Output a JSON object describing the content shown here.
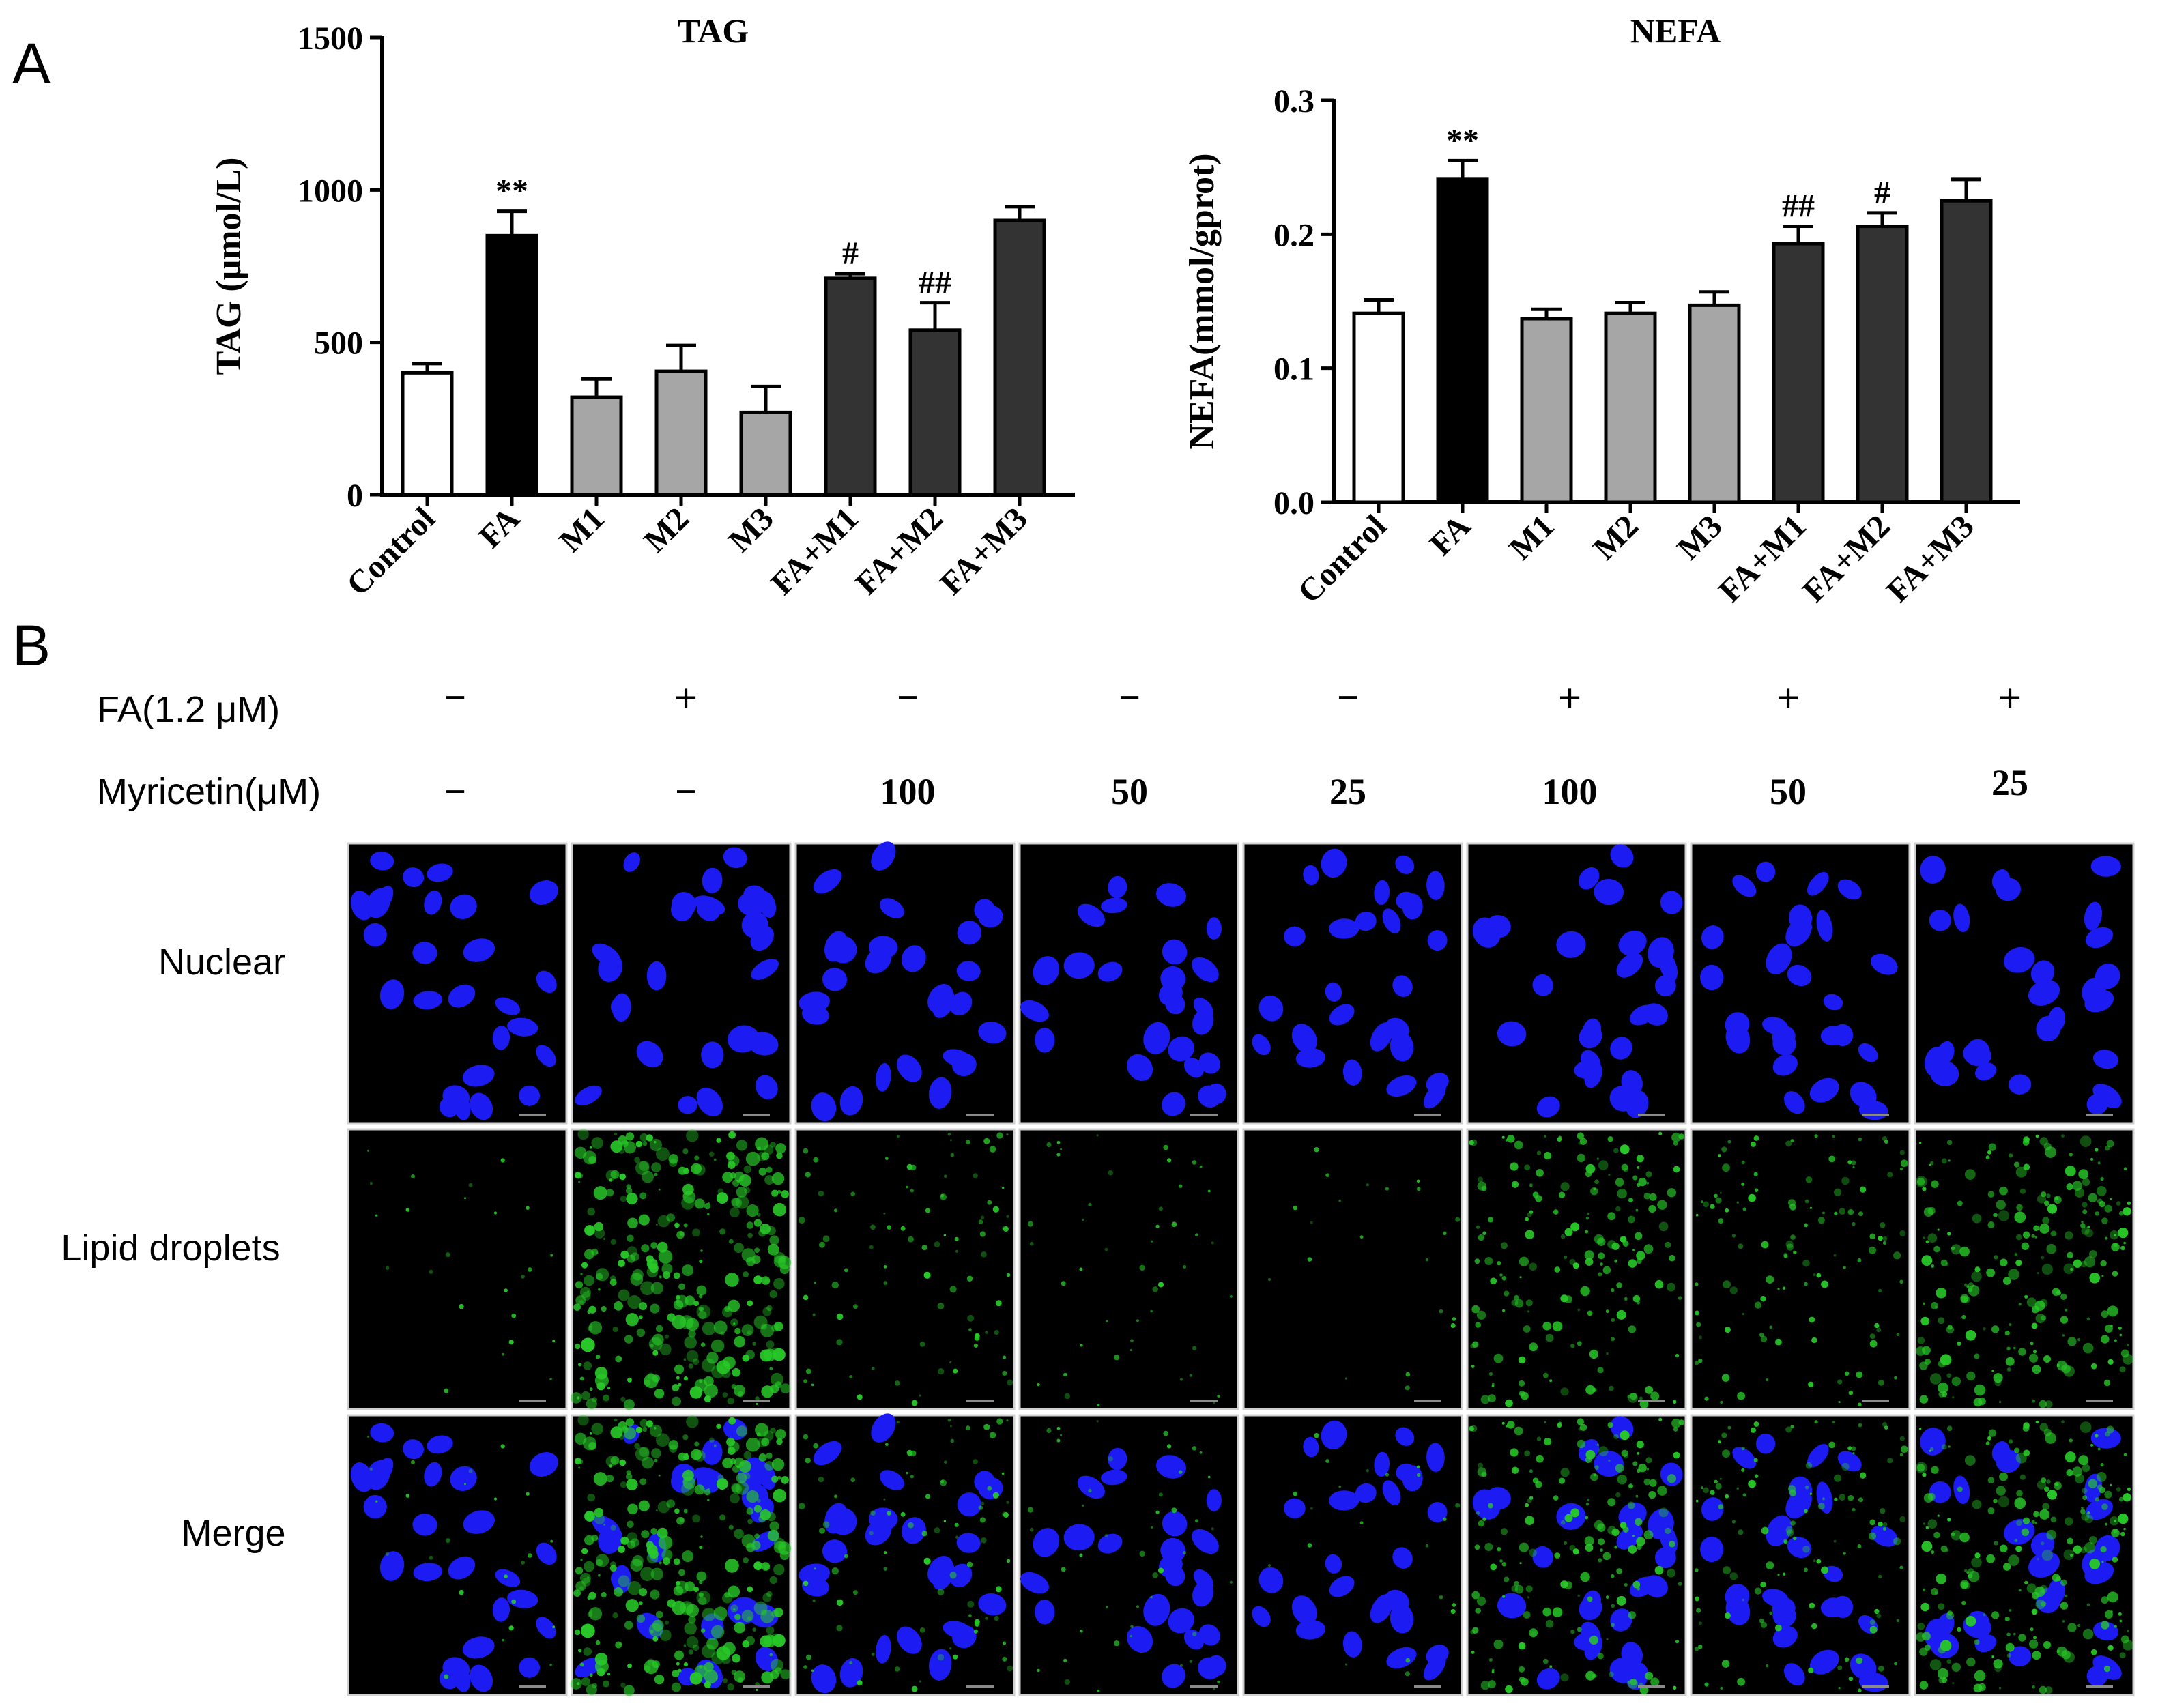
{
  "panel_labels": {
    "a": "A",
    "b": "B"
  },
  "chart_data": [
    {
      "type": "bar",
      "title": "TAG",
      "ylabel": "TAG (μmol/L)",
      "xlabel": "",
      "categories": [
        "Control",
        "FA",
        "M1",
        "M2",
        "M3",
        "FA+M1",
        "FA+M2",
        "FA+M3"
      ],
      "values": [
        400,
        850,
        320,
        405,
        270,
        710,
        540,
        900
      ],
      "errors": [
        30,
        80,
        60,
        85,
        85,
        15,
        90,
        45
      ],
      "annotations": [
        "",
        "**",
        "",
        "",
        "",
        "#",
        "##",
        ""
      ],
      "fills": [
        "#ffffff",
        "#000000",
        "#a6a6a6",
        "#a6a6a6",
        "#a6a6a6",
        "#333333",
        "#333333",
        "#333333"
      ],
      "ylim": [
        0,
        1500
      ],
      "yticks": [
        "0",
        "500",
        "1000",
        "1500"
      ],
      "ytick_values": [
        0,
        500,
        1000,
        1500
      ],
      "grid": false
    },
    {
      "type": "bar",
      "title": "NEFA",
      "ylabel": "NEFA(mmol/gprot)",
      "xlabel": "",
      "categories": [
        "Control",
        "FA",
        "M1",
        "M2",
        "M3",
        "FA+M1",
        "FA+M2",
        "FA+M3"
      ],
      "values": [
        0.141,
        0.241,
        0.137,
        0.141,
        0.147,
        0.193,
        0.206,
        0.225
      ],
      "errors": [
        0.01,
        0.014,
        0.007,
        0.008,
        0.01,
        0.013,
        0.01,
        0.016
      ],
      "annotations": [
        "",
        "**",
        "",
        "",
        "",
        "##",
        "#",
        ""
      ],
      "fills": [
        "#ffffff",
        "#000000",
        "#a6a6a6",
        "#a6a6a6",
        "#a6a6a6",
        "#333333",
        "#333333",
        "#333333"
      ],
      "ylim": [
        0,
        0.3
      ],
      "yticks": [
        "0.0",
        "0.1",
        "0.2",
        "0.3"
      ],
      "ytick_values": [
        0,
        0.1,
        0.2,
        0.3
      ],
      "grid": false
    }
  ],
  "conditions": {
    "fa_label": "FA(1.2 μM)",
    "myricetin_label": "Myricetin(μM)",
    "fa_values": [
      "−",
      "+",
      "−",
      "−",
      "−",
      "+",
      "+",
      "+"
    ],
    "myricetin_values": [
      "−",
      "−",
      "100",
      "50",
      "25",
      "100",
      "50",
      "25"
    ]
  },
  "micrographs": {
    "rows": [
      "Nuclear",
      "Lipid droplets",
      "Merge"
    ],
    "colors": {
      "background": "#000000",
      "nucleus": "#1c1cf2",
      "lipid": "#28c828",
      "frame": "#d0d0d0"
    },
    "lipid_density": [
      0.05,
      1.0,
      0.25,
      0.12,
      0.04,
      0.55,
      0.35,
      0.7
    ]
  }
}
